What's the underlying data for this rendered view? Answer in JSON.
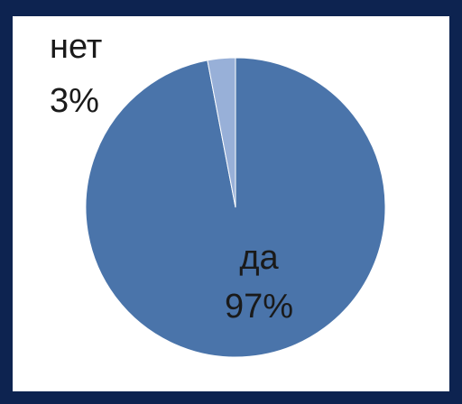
{
  "colors": {
    "background": "#0d2350",
    "panel": "#ffffff",
    "slice_yes": "#4a74aa",
    "slice_no": "#98b0d8"
  },
  "chart_data": {
    "type": "pie",
    "slices": [
      {
        "label": "да",
        "value": 97,
        "percent_label": "97%",
        "color": "#4a74aa"
      },
      {
        "label": "нет",
        "value": 3,
        "percent_label": "3%",
        "color": "#98b0d8"
      }
    ]
  }
}
